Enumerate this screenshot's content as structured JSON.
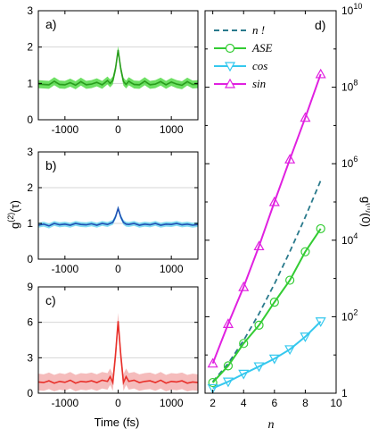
{
  "chart_data": [
    {
      "type": "line",
      "panel_label": "a)",
      "x_ticks": [
        "-1000",
        "0",
        "1000"
      ],
      "y_ticks": [
        "0",
        "1",
        "2",
        "3"
      ],
      "xlim": [
        -1500,
        1500
      ],
      "ylim": [
        0,
        3
      ],
      "ylabel": "g(2)(τ)",
      "series": [
        {
          "color": "#2a9d1e",
          "band_color": "#3cd62f",
          "x": [
            -1500,
            -1400,
            -1300,
            -1200,
            -1100,
            -1000,
            -900,
            -800,
            -700,
            -600,
            -500,
            -400,
            -300,
            -200,
            -150,
            -100,
            -50,
            0,
            50,
            100,
            150,
            200,
            300,
            400,
            500,
            600,
            700,
            800,
            900,
            1000,
            1100,
            1200,
            1300,
            1400,
            1500
          ],
          "y": [
            0.98,
            0.97,
            0.96,
            1.06,
            0.97,
            0.96,
            1.02,
            0.95,
            1.05,
            0.96,
            0.98,
            1.03,
            0.96,
            1.08,
            1.0,
            1.08,
            1.4,
            1.92,
            1.4,
            1.05,
            0.97,
            1.06,
            0.97,
            0.96,
            1.06,
            0.96,
            0.98,
            1.05,
            0.96,
            1.04,
            0.98,
            0.95,
            1.05,
            0.97,
            0.98
          ],
          "band": 0.11
        }
      ]
    },
    {
      "type": "line",
      "panel_label": "b)",
      "x_ticks": [
        "-1000",
        "0",
        "1000"
      ],
      "y_ticks": [
        "0",
        "1",
        "2",
        "3"
      ],
      "xlim": [
        -1500,
        1500
      ],
      "ylim": [
        0,
        3
      ],
      "series": [
        {
          "color": "#1f4fb4",
          "band_color": "#5fd4ee",
          "x": [
            -1500,
            -1400,
            -1300,
            -1200,
            -1100,
            -1000,
            -900,
            -800,
            -700,
            -600,
            -500,
            -400,
            -300,
            -200,
            -150,
            -100,
            -50,
            0,
            50,
            100,
            150,
            200,
            300,
            400,
            500,
            600,
            700,
            800,
            900,
            1000,
            1100,
            1200,
            1300,
            1400,
            1500
          ],
          "y": [
            0.95,
            0.98,
            0.93,
            1.0,
            0.96,
            0.98,
            0.95,
            1.0,
            0.97,
            0.96,
            0.99,
            0.95,
            1.0,
            0.97,
            1.0,
            1.03,
            1.18,
            1.42,
            1.18,
            1.03,
            0.98,
            0.97,
            1.0,
            0.95,
            0.98,
            0.96,
            1.0,
            0.95,
            0.98,
            0.97,
            1.0,
            0.96,
            0.98,
            0.95,
            0.97
          ],
          "band": 0.07
        }
      ]
    },
    {
      "type": "line",
      "panel_label": "c)",
      "x_ticks": [
        "-1000",
        "0",
        "1000"
      ],
      "y_ticks": [
        "0",
        "3",
        "6",
        "9"
      ],
      "xlim": [
        -1500,
        1500
      ],
      "ylim": [
        0,
        9
      ],
      "xlabel": "Time (fs)",
      "series": [
        {
          "color": "#e8302a",
          "band_color": "#f1a5a5",
          "x": [
            -1500,
            -1400,
            -1300,
            -1200,
            -1100,
            -1000,
            -900,
            -800,
            -700,
            -600,
            -500,
            -400,
            -300,
            -200,
            -150,
            -100,
            -50,
            0,
            50,
            100,
            150,
            200,
            300,
            400,
            500,
            600,
            700,
            800,
            900,
            1000,
            1100,
            1200,
            1300,
            1400,
            1500
          ],
          "y": [
            0.95,
            0.9,
            1.05,
            0.85,
            1.0,
            0.92,
            1.1,
            0.85,
            1.0,
            0.95,
            1.05,
            0.9,
            1.1,
            1.0,
            1.4,
            0.9,
            3.2,
            6.1,
            3.2,
            0.9,
            1.4,
            1.0,
            1.1,
            0.9,
            1.0,
            1.05,
            0.9,
            1.1,
            0.85,
            1.0,
            0.95,
            1.05,
            0.85,
            0.95,
            0.9
          ],
          "band": 0.7
        }
      ]
    },
    {
      "type": "line",
      "panel_label": "d)",
      "x_ticks": [
        "2",
        "4",
        "6",
        "8",
        "10"
      ],
      "xlim": [
        1.5,
        10
      ],
      "ylim": [
        1,
        10000000000
      ],
      "y_scale": "log",
      "xlabel": "n",
      "ylabel": "g(n)(0)",
      "legend": [
        "n !",
        "ASE",
        "cos",
        "sin"
      ],
      "legend_position": "top-left",
      "series": [
        {
          "name": "n !",
          "color": "#2a7a8c",
          "dashed": true,
          "x": [
            2,
            3,
            4,
            5,
            6,
            7,
            8,
            9
          ],
          "y": [
            2,
            6,
            24,
            120,
            720,
            5040,
            40320,
            362880
          ]
        },
        {
          "name": "ASE",
          "color": "#33cc33",
          "marker": "circle",
          "x": [
            2,
            3,
            4,
            5,
            6,
            7,
            8,
            9
          ],
          "y": [
            1.9,
            5.2,
            20,
            60,
            240,
            900,
            5000,
            20000
          ]
        },
        {
          "name": "cos",
          "color": "#35c8ee",
          "marker": "triangle-down",
          "x": [
            2,
            3,
            4,
            5,
            6,
            7,
            8,
            9
          ],
          "y": [
            1.35,
            2.0,
            3.2,
            5.0,
            8.0,
            14,
            30,
            75
          ]
        },
        {
          "name": "sin",
          "color": "#e020e0",
          "marker": "triangle-up",
          "x": [
            2,
            3,
            4,
            5,
            6,
            7,
            8,
            9
          ],
          "y": [
            6,
            65,
            600,
            7000,
            100000,
            1300000,
            16000000,
            220000000
          ]
        }
      ]
    }
  ]
}
